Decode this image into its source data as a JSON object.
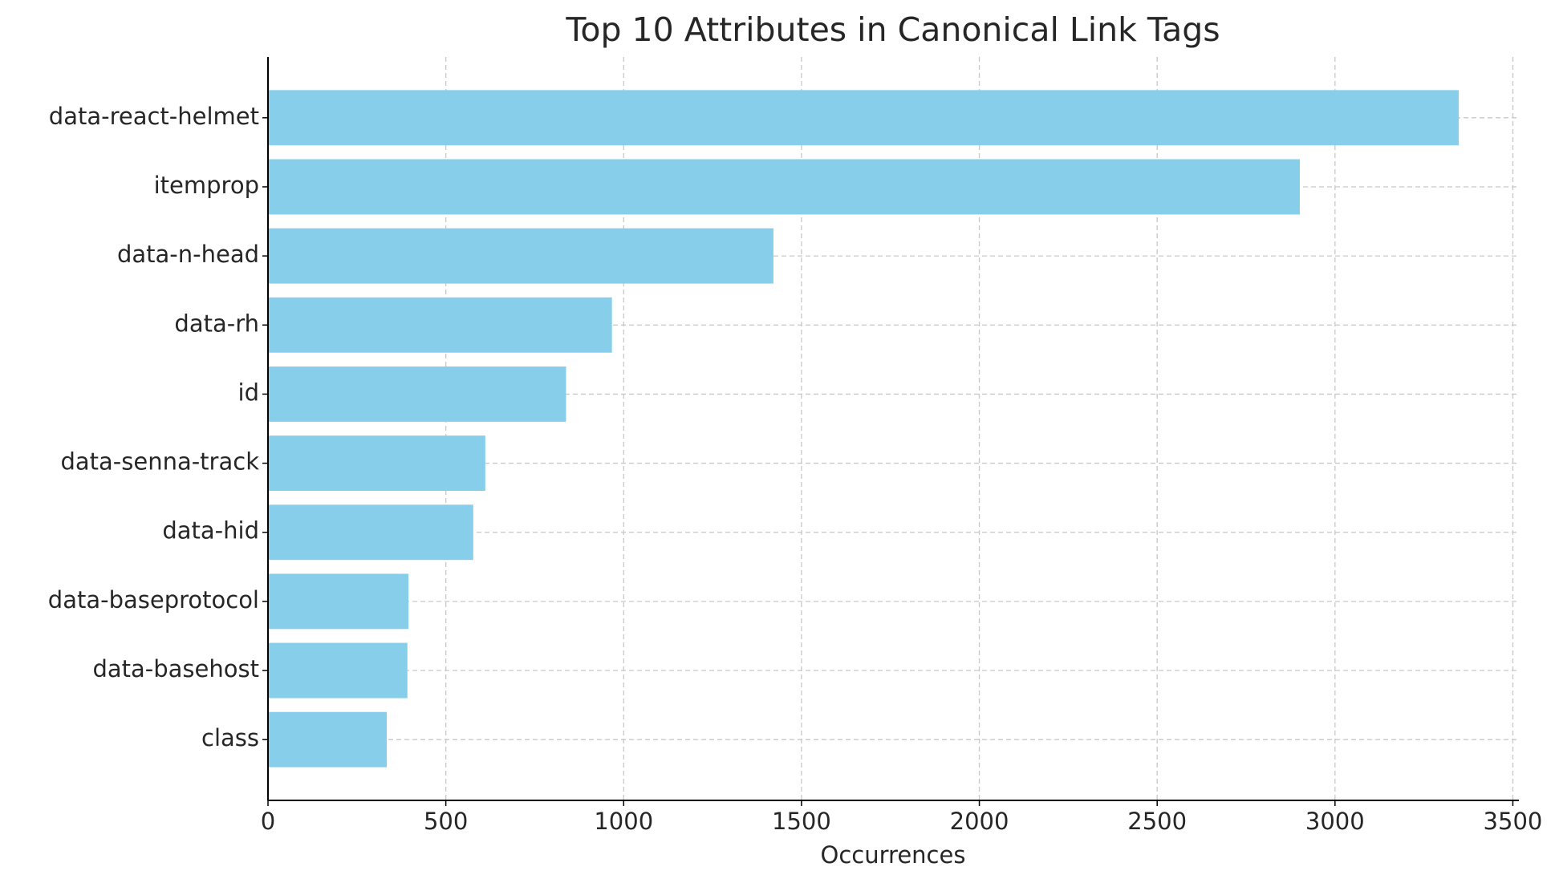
{
  "chart_data": {
    "type": "hbar",
    "title": "Top 10 Attributes in Canonical Link Tags",
    "x_label": "Occurrences",
    "categories": [
      "data-react-helmet",
      "itemprop",
      "data-n-head",
      "data-rh",
      "id",
      "data-senna-track",
      "data-hid",
      "data-baseprotocol",
      "data-basehost",
      "class"
    ],
    "values": [
      3348,
      2901,
      1421,
      967,
      838,
      611,
      577,
      395,
      392,
      334
    ],
    "color": "#87ceeb",
    "xlim": [
      0,
      3517
    ],
    "xticks": [
      0,
      500,
      1000,
      1500,
      2000,
      2500,
      3000,
      3500
    ],
    "grid": true
  }
}
